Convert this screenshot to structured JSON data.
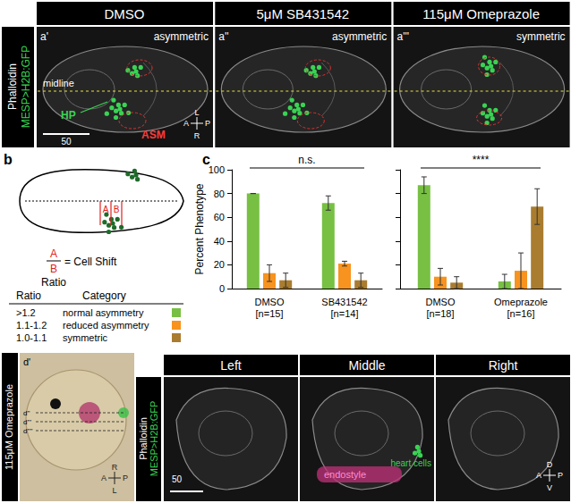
{
  "panel_a": {
    "stain": [
      "Phalloidin",
      "MESP>H2B:GFP"
    ],
    "images": [
      {
        "header": "DMSO",
        "label": "a'",
        "phenotype": "asymmetric",
        "midline": "midline",
        "hp": "HP",
        "asm": "ASM",
        "scale_bar": "50",
        "compass": [
          "L",
          "R",
          "A",
          "P"
        ]
      },
      {
        "header": "5μM SB431542",
        "label": "a''",
        "phenotype": "asymmetric"
      },
      {
        "header": "115μM Omeprazole",
        "label": "a'''",
        "phenotype": "symmetric"
      }
    ]
  },
  "panel_b": {
    "label": "b",
    "letters": [
      "A",
      "B"
    ],
    "fraction": {
      "numerator": "A",
      "denominator": "B",
      "text": "= Cell Shift",
      "below": "Ratio"
    },
    "table": {
      "header": [
        "Ratio",
        "Category"
      ],
      "rows": [
        {
          "ratio": ">1.2",
          "category": "normal asymmetry",
          "color": "#77c043"
        },
        {
          "ratio": "1.1-1.2",
          "category": "reduced asymmetry",
          "color": "#f7931e"
        },
        {
          "ratio": "1.0-1.1",
          "category": "symmetric",
          "color": "#a97c2f"
        }
      ]
    }
  },
  "panel_c": {
    "label": "c"
  },
  "chart_data": [
    {
      "type": "bar",
      "categories": [
        "DMSO\n[n=15]",
        "SB431542\n[n=14]"
      ],
      "series": [
        {
          "color": "#77c043",
          "values": [
            80,
            72
          ],
          "errors": [
            0,
            6
          ]
        },
        {
          "color": "#f7931e",
          "values": [
            13,
            21
          ],
          "errors": [
            7,
            2
          ]
        },
        {
          "color": "#a97c2f",
          "values": [
            7,
            7
          ],
          "errors": [
            6,
            6
          ]
        }
      ],
      "ylim": [
        0,
        100
      ],
      "yticks": [
        0,
        20,
        40,
        60,
        80,
        100
      ],
      "ylabel": "Percent Phenotype",
      "annotations": [
        "n.s."
      ],
      "grid": false
    },
    {
      "type": "bar",
      "categories": [
        "DMSO\n[n=18]",
        "Omeprazole\n[n=16]"
      ],
      "series": [
        {
          "color": "#77c043",
          "values": [
            87,
            6
          ],
          "errors": [
            7,
            6
          ]
        },
        {
          "color": "#f7931e",
          "values": [
            10,
            15
          ],
          "errors": [
            7,
            15
          ]
        },
        {
          "color": "#a97c2f",
          "values": [
            5,
            69
          ],
          "errors": [
            5,
            15
          ]
        }
      ],
      "ylim": [
        0,
        100
      ],
      "yticks": [
        0,
        20,
        40,
        60,
        80,
        100
      ],
      "annotations": [
        "****"
      ],
      "tick_labels": "x",
      "grid": false
    }
  ],
  "panel_d": {
    "side_label": "115μM Omeprazole",
    "brightfield": {
      "label": "d'",
      "lines": [
        "d''",
        "d'''",
        "d''''"
      ],
      "compass": [
        "R",
        "L",
        "A",
        "P"
      ]
    },
    "stain": [
      "Phalloidin",
      "MESP>H2B:GFP"
    ],
    "images": [
      {
        "header": "Left",
        "scale_bar": "50"
      },
      {
        "header": "Middle",
        "endostyle": "endostyle",
        "heart": "heart cells"
      },
      {
        "header": "Right",
        "compass": [
          "D",
          "V",
          "A",
          "P"
        ]
      }
    ]
  }
}
